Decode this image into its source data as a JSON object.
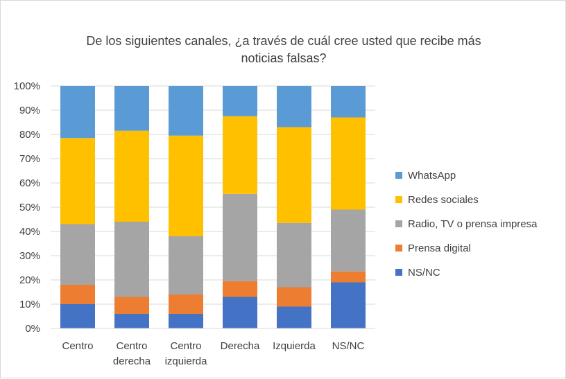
{
  "chart_data": {
    "type": "bar",
    "stacked": true,
    "percent": true,
    "title_lines": [
      "De los siguientes canales, ¿a través de cuál cree usted que recibe más",
      "noticias falsas?"
    ],
    "categories": [
      [
        "Centro"
      ],
      [
        "Centro",
        "derecha"
      ],
      [
        "Centro",
        "izquierda"
      ],
      [
        "Derecha"
      ],
      [
        "Izquierda"
      ],
      [
        "NS/NC"
      ]
    ],
    "yticks": [
      "0%",
      "10%",
      "20%",
      "30%",
      "40%",
      "50%",
      "60%",
      "70%",
      "80%",
      "90%",
      "100%"
    ],
    "ylim": [
      0,
      100
    ],
    "grid": true,
    "legend_position": "right",
    "series": [
      {
        "name": "NS/NC",
        "color": "#4472C4",
        "values": [
          10,
          6,
          6,
          13,
          9,
          19
        ]
      },
      {
        "name": "Prensa digital",
        "color": "#ED7D31",
        "values": [
          8,
          7,
          8,
          6.5,
          8,
          4.5
        ]
      },
      {
        "name": "Radio, TV o prensa impresa",
        "color": "#A5A5A5",
        "values": [
          25,
          31,
          24,
          36,
          26.5,
          25.5
        ]
      },
      {
        "name": "Redes sociales",
        "color": "#FFC000",
        "values": [
          35.5,
          37.5,
          41.5,
          32,
          39.5,
          38
        ]
      },
      {
        "name": "WhatsApp",
        "color": "#5B9BD5",
        "values": [
          21.5,
          18.5,
          20.5,
          12.5,
          17,
          13
        ]
      }
    ]
  }
}
